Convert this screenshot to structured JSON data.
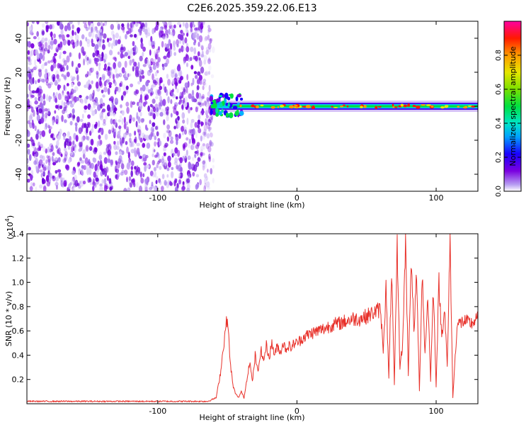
{
  "title": "C2E6.2025.359.22.06.E13",
  "chart_data": [
    {
      "type": "heatmap",
      "title": "C2E6.2025.359.22.06.E13",
      "xlabel": "Height of straight line (km)",
      "ylabel": "Frequency (Hz)",
      "xlim": [
        -194,
        130
      ],
      "ylim": [
        -50,
        50
      ],
      "xticks": [
        -100,
        0,
        100
      ],
      "xtick_labels": [
        "-100",
        "0",
        "100"
      ],
      "yticks": [
        -40,
        -20,
        0,
        20,
        40
      ],
      "ytick_labels": [
        "-40",
        "-20",
        "0",
        "20",
        "40"
      ],
      "description_values": {
        "noise_region_x": [
          -194,
          -60
        ],
        "signal_band_center_hz": 0,
        "signal_band_start_km": -62
      },
      "colorbar": {
        "label": "Normalized spectral amplitude",
        "range": [
          0,
          1
        ],
        "ticks": [
          0.0,
          0.2,
          0.4,
          0.6,
          0.8
        ],
        "tick_labels": [
          "0.0",
          "0.2",
          "0.4",
          "0.6",
          "0.8"
        ],
        "colormap": "rainbow"
      }
    },
    {
      "type": "line",
      "xlabel": "Height of straight line (km)",
      "ylabel": "SNR (10 * v/v)",
      "scale_label": "(x10",
      "scale_exponent": "4",
      "scale_suffix": ")",
      "xlim": [
        -194,
        130
      ],
      "ylim": [
        0,
        1.4
      ],
      "xticks": [
        -100,
        0,
        100
      ],
      "xtick_labels": [
        "-100",
        "0",
        "100"
      ],
      "yticks": [
        0.2,
        0.4,
        0.6,
        0.8,
        1.0,
        1.2,
        1.4
      ],
      "ytick_labels": [
        "0.2",
        "0.4",
        "0.6",
        "0.8",
        "1.0",
        "1.2",
        "1.4"
      ],
      "color": "#e8312a",
      "series": [
        {
          "name": "SNR",
          "x": [
            -194,
            -150,
            -100,
            -64,
            -58,
            -55,
            -52,
            -50,
            -48,
            -46,
            -44,
            -42,
            -40,
            -38,
            -36,
            -34,
            -32,
            -30,
            -28,
            -26,
            -24,
            -22,
            -20,
            -18,
            -16,
            -14,
            -12,
            -10,
            -8,
            -6,
            -4,
            -2,
            0,
            5,
            10,
            15,
            20,
            25,
            30,
            35,
            40,
            45,
            50,
            55,
            60,
            62,
            64,
            66,
            68,
            70,
            72,
            74,
            76,
            78,
            80,
            82,
            84,
            86,
            88,
            90,
            92,
            94,
            96,
            98,
            100,
            102,
            104,
            106,
            108,
            110,
            112,
            115,
            120,
            125,
            130
          ],
          "y": [
            0.02,
            0.02,
            0.02,
            0.02,
            0.05,
            0.25,
            0.55,
            0.72,
            0.35,
            0.15,
            0.08,
            0.05,
            0.1,
            0.05,
            0.2,
            0.35,
            0.18,
            0.4,
            0.25,
            0.45,
            0.35,
            0.48,
            0.38,
            0.5,
            0.4,
            0.48,
            0.42,
            0.5,
            0.45,
            0.48,
            0.46,
            0.5,
            0.5,
            0.55,
            0.58,
            0.6,
            0.62,
            0.65,
            0.66,
            0.68,
            0.7,
            0.7,
            0.72,
            0.75,
            0.78,
            0.45,
            0.95,
            0.2,
            1.1,
            0.15,
            1.3,
            0.3,
            0.5,
            1.35,
            0.25,
            1.2,
            0.6,
            1.05,
            0.1,
            1.1,
            0.4,
            0.9,
            0.2,
            0.95,
            0.15,
            1.0,
            0.55,
            0.8,
            0.3,
            1.35,
            0.05,
            0.65,
            0.68,
            0.66,
            0.7
          ]
        }
      ]
    }
  ]
}
